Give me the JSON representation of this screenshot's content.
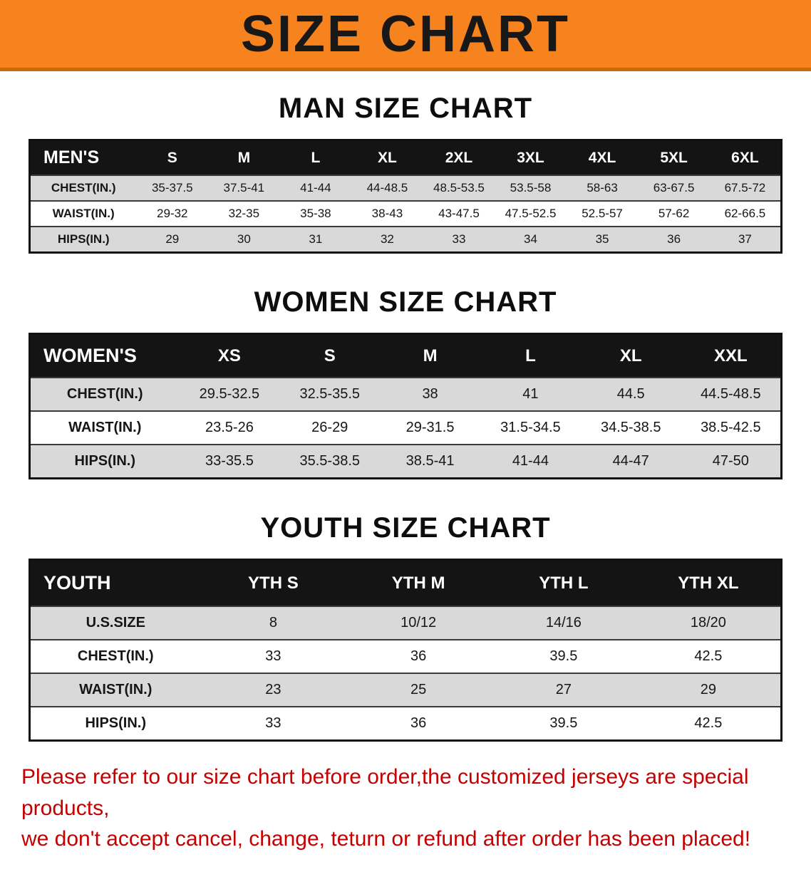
{
  "banner": {
    "title": "SIZE CHART"
  },
  "colors": {
    "banner-orange": "#f6831d",
    "banner-edge": "#c96a0a",
    "header-black": "#141414",
    "row-gray": "#d9d9d9",
    "notice-red": "#c40000"
  },
  "sections": [
    {
      "heading": "MAN SIZE CHART",
      "table": {
        "header": [
          "MEN'S",
          "S",
          "M",
          "L",
          "XL",
          "2XL",
          "3XL",
          "4XL",
          "5XL",
          "6XL"
        ],
        "rows": [
          [
            "CHEST(IN.)",
            "35-37.5",
            "37.5-41",
            "41-44",
            "44-48.5",
            "48.5-53.5",
            "53.5-58",
            "58-63",
            "63-67.5",
            "67.5-72"
          ],
          [
            "WAIST(IN.)",
            "29-32",
            "32-35",
            "35-38",
            "38-43",
            "43-47.5",
            "47.5-52.5",
            "52.5-57",
            "57-62",
            "62-66.5"
          ],
          [
            "HIPS(IN.)",
            "29",
            "30",
            "31",
            "32",
            "33",
            "34",
            "35",
            "36",
            "37"
          ]
        ]
      }
    },
    {
      "heading": "WOMEN SIZE CHART",
      "table": {
        "header": [
          "WOMEN'S",
          "XS",
          "S",
          "M",
          "L",
          "XL",
          "XXL"
        ],
        "rows": [
          [
            "CHEST(IN.)",
            "29.5-32.5",
            "32.5-35.5",
            "38",
            "41",
            "44.5",
            "44.5-48.5"
          ],
          [
            "WAIST(IN.)",
            "23.5-26",
            "26-29",
            "29-31.5",
            "31.5-34.5",
            "34.5-38.5",
            "38.5-42.5"
          ],
          [
            "HIPS(IN.)",
            "33-35.5",
            "35.5-38.5",
            "38.5-41",
            "41-44",
            "44-47",
            "47-50"
          ]
        ]
      }
    },
    {
      "heading": "YOUTH SIZE CHART",
      "table": {
        "header": [
          "YOUTH",
          "YTH S",
          "YTH M",
          "YTH L",
          "YTH XL"
        ],
        "rows": [
          [
            "U.S.SIZE",
            "8",
            "10/12",
            "14/16",
            "18/20"
          ],
          [
            "CHEST(IN.)",
            "33",
            "36",
            "39.5",
            "42.5"
          ],
          [
            "WAIST(IN.)",
            "23",
            "25",
            "27",
            "29"
          ],
          [
            "HIPS(IN.)",
            "33",
            "36",
            "39.5",
            "42.5"
          ]
        ]
      }
    }
  ],
  "footer": {
    "line1": "Please refer to our size chart before order,the customized jerseys are special products,",
    "line2": "we don't accept cancel, change, teturn or refund after order has been placed!"
  }
}
